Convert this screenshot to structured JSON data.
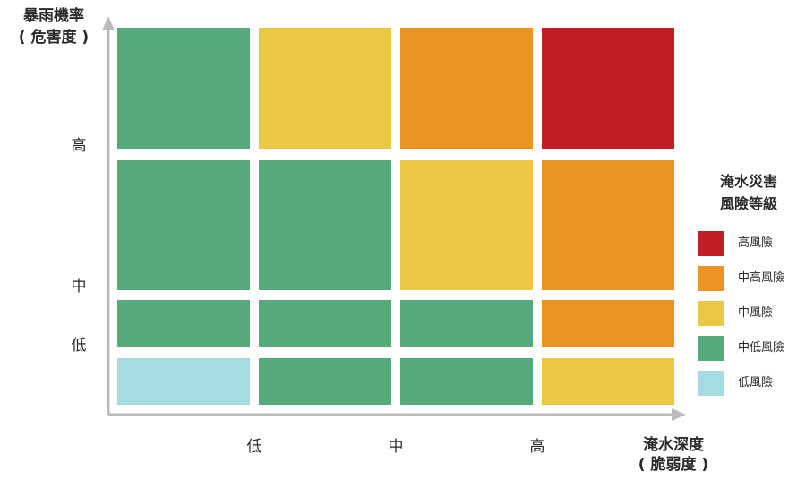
{
  "chart_data": {
    "type": "heatmap",
    "title": "",
    "ylabel": [
      "暴雨機率",
      "( 危害度 )"
    ],
    "xlabel": [
      "淹水深度",
      "( 脆弱度 )"
    ],
    "x_categories": [
      "",
      "低",
      "中",
      "高"
    ],
    "y_categories": [
      "",
      "低",
      "中",
      "高"
    ],
    "legend_title": [
      "淹水災害",
      "風險等級"
    ],
    "legend": [
      {
        "label": "高風險",
        "color": "#be1e24"
      },
      {
        "label": "中高風險",
        "color": "#ea9424"
      },
      {
        "label": "中風險",
        "color": "#eac843"
      },
      {
        "label": "中低風險",
        "color": "#56a97a"
      },
      {
        "label": "低風險",
        "color": "#a5dce0"
      }
    ],
    "cells": [
      [
        "中低風險",
        "中風險",
        "中高風險",
        "高風險"
      ],
      [
        "中低風險",
        "中低風險",
        "中風險",
        "中高風險"
      ],
      [
        "中低風險",
        "中低風險",
        "中低風險",
        "中高風險"
      ],
      [
        "低風險",
        "中低風險",
        "中低風險",
        "中風險"
      ]
    ],
    "row_order": "top-to-bottom",
    "axis_color": "#bbbbbb"
  }
}
